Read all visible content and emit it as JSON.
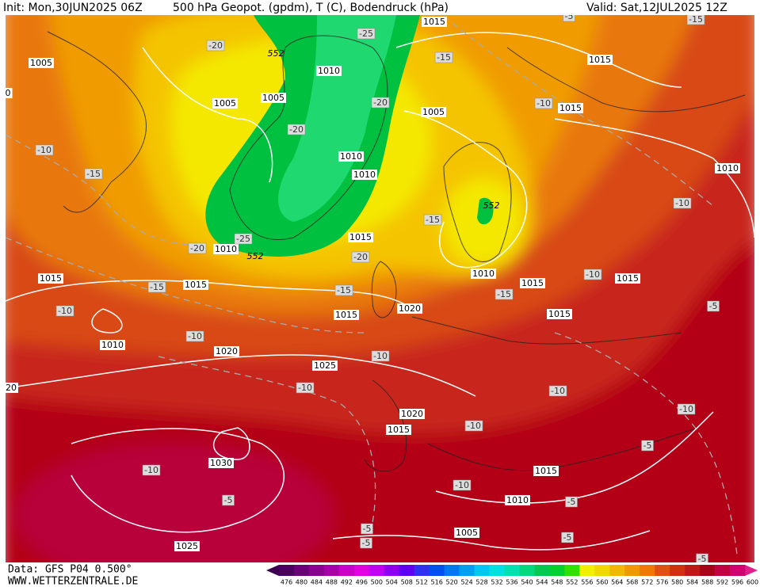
{
  "header": {
    "init": "Init: Mon,30JUN2025 06Z",
    "title": "500 hPa Geopot. (gpdm), T (C), Bodendruck (hPa)",
    "valid": "Valid: Sat,12JUL2025 12Z"
  },
  "map": {
    "pressure_labels": [
      "1005",
      "1010",
      "1005",
      "1005",
      "1005",
      "1015",
      "1015",
      "1010",
      "1010",
      "1010",
      "1015",
      "1010",
      "1015",
      "1015",
      "1010",
      "1015",
      "1015",
      "1020",
      "1015",
      "1015",
      "1010",
      "1020",
      "1025",
      "1020",
      "1015",
      "1030",
      "1015",
      "1010",
      "1005",
      "1025",
      "1015",
      "0",
      "20"
    ],
    "geopotential_labels": [
      "552",
      "552",
      "552"
    ],
    "temperature_labels": [
      "-25",
      "-20",
      "-15",
      "-20",
      "-20",
      "-10",
      "-10",
      "-15",
      "-10",
      "-15",
      "-25",
      "-20",
      "-20",
      "-15",
      "-15",
      "-10",
      "-15",
      "-10",
      "-5",
      "-10",
      "-10",
      "-10",
      "-10",
      "-10",
      "-10",
      "-5",
      "-10",
      "-5",
      "-10",
      "-5",
      "-5",
      "-5",
      "-5",
      "-5",
      "-15",
      "-5"
    ]
  },
  "colorbar": {
    "labels": [
      "476",
      "480",
      "484",
      "488",
      "492",
      "496",
      "500",
      "504",
      "508",
      "512",
      "516",
      "520",
      "524",
      "528",
      "532",
      "536",
      "540",
      "544",
      "548",
      "552",
      "556",
      "560",
      "564",
      "568",
      "572",
      "576",
      "580",
      "584",
      "588",
      "592",
      "596",
      "600"
    ],
    "colors": [
      "#4b0060",
      "#6a0078",
      "#8a0090",
      "#a800a8",
      "#c800c8",
      "#e000e0",
      "#c000f0",
      "#9000f0",
      "#6000f0",
      "#3030f0",
      "#0050f0",
      "#0078f0",
      "#00a0f0",
      "#00c8f0",
      "#00e0e0",
      "#00e0b0",
      "#00d880",
      "#00c850",
      "#00d030",
      "#30e000",
      "#f0f000",
      "#f0d800",
      "#f0b800",
      "#f09800",
      "#f07800",
      "#e05010",
      "#d03010",
      "#c01818",
      "#a80018",
      "#c00040",
      "#d00070"
    ]
  },
  "footer": {
    "data": "Data: GFS P04 0.500°",
    "site": "WWW.WETTERZENTRALE.DE"
  }
}
